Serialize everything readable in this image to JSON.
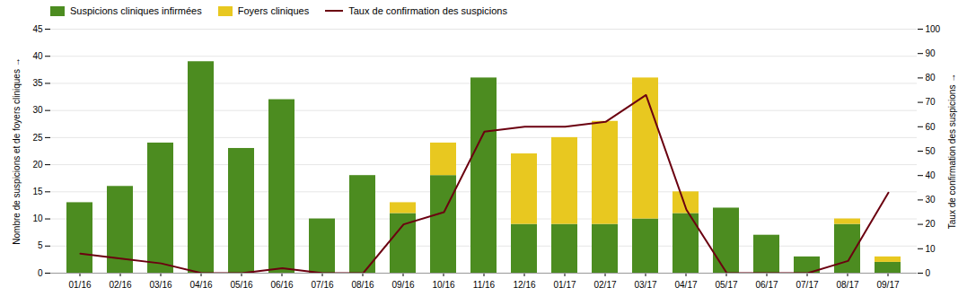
{
  "chart_data": {
    "type": "bar",
    "stacked": true,
    "categories": [
      "01/16",
      "02/16",
      "03/16",
      "04/16",
      "05/16",
      "06/16",
      "07/16",
      "08/16",
      "09/16",
      "10/16",
      "11/16",
      "12/16",
      "01/17",
      "02/17",
      "03/17",
      "04/17",
      "05/17",
      "06/17",
      "07/17",
      "08/17",
      "09/17"
    ],
    "series": [
      {
        "name": "Suspicions cliniques infirmées",
        "color": "#4c8c20",
        "values": [
          13,
          16,
          24,
          39,
          23,
          32,
          10,
          18,
          11,
          18,
          36,
          9,
          9,
          9,
          10,
          11,
          12,
          7,
          3,
          9,
          2
        ]
      },
      {
        "name": "Foyers cliniques",
        "color": "#e8c820",
        "values": [
          0,
          0,
          0,
          0,
          0,
          0,
          0,
          0,
          2,
          6,
          0,
          13,
          16,
          19,
          26,
          4,
          0,
          0,
          0,
          1,
          1
        ]
      },
      {
        "name": "Taux de confirmation des suspicions",
        "type": "line",
        "axis": "y2",
        "color": "#6b0010",
        "values": [
          8,
          6,
          4,
          0,
          0,
          2,
          0,
          0,
          20,
          25,
          58,
          60,
          60,
          62,
          73,
          26,
          0,
          0,
          0,
          5,
          33
        ]
      }
    ],
    "ylabel": "Nombre de suspicions et de foyers cliniques",
    "y2label": "Taux de confirmation des suspicions",
    "ylim": [
      0,
      45
    ],
    "yticks": [
      0,
      5,
      10,
      15,
      20,
      25,
      30,
      35,
      40,
      45
    ],
    "y2lim": [
      0,
      100
    ],
    "y2ticks": [
      0,
      10,
      20,
      30,
      40,
      50,
      60,
      70,
      80,
      90,
      100
    ],
    "grid": true,
    "legend": "upper left"
  }
}
